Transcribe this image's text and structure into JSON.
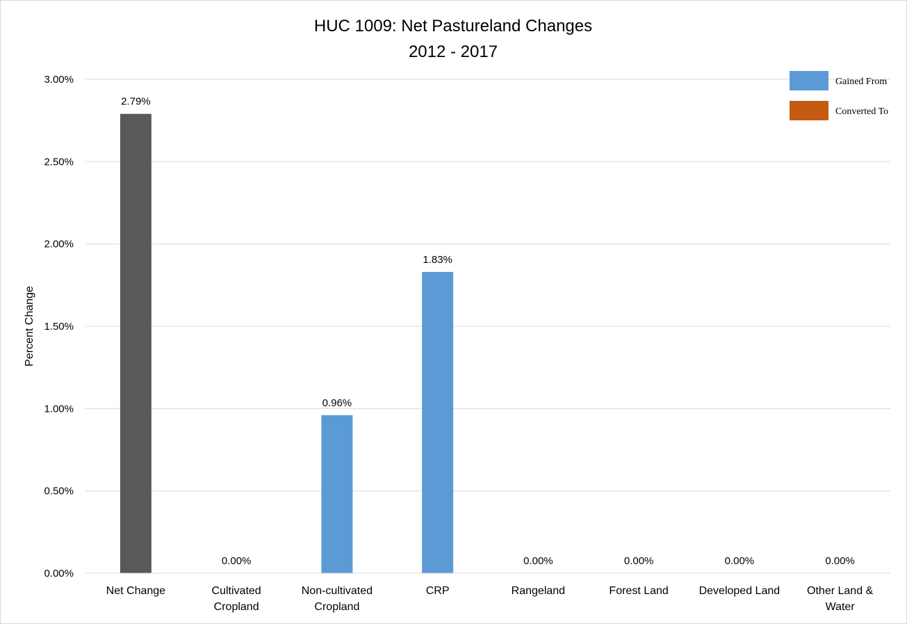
{
  "chart_data": {
    "type": "bar",
    "title": [
      "HUC 1009: Net Pastureland Changes",
      "2012 - 2017"
    ],
    "ylabel": "Percent Change",
    "ylim": [
      0,
      3.0
    ],
    "yticks": [
      "0.00%",
      "0.50%",
      "1.00%",
      "1.50%",
      "2.00%",
      "2.50%",
      "3.00%"
    ],
    "grid": true,
    "legend_position": "top-right",
    "legend": [
      {
        "name": "Gained From",
        "color": "#5b9bd5"
      },
      {
        "name": "Converted To",
        "color": "#c55a11"
      }
    ],
    "categories": [
      [
        "Net Change"
      ],
      [
        "Cultivated",
        "Cropland"
      ],
      [
        "Non-cultivated",
        "Cropland"
      ],
      [
        "CRP"
      ],
      [
        "Rangeland"
      ],
      [
        "Forest Land"
      ],
      [
        "Developed Land"
      ],
      [
        "Other Land &",
        "Water"
      ]
    ],
    "values": [
      2.79,
      0.0,
      0.96,
      1.83,
      0.0,
      0.0,
      0.0,
      0.0
    ],
    "data_labels": [
      "2.79%",
      "0.00%",
      "0.96%",
      "1.83%",
      "0.00%",
      "0.00%",
      "0.00%",
      "0.00%"
    ],
    "bar_colors": [
      "#595959",
      "#5b9bd5",
      "#5b9bd5",
      "#5b9bd5",
      "#5b9bd5",
      "#5b9bd5",
      "#5b9bd5",
      "#5b9bd5"
    ]
  }
}
